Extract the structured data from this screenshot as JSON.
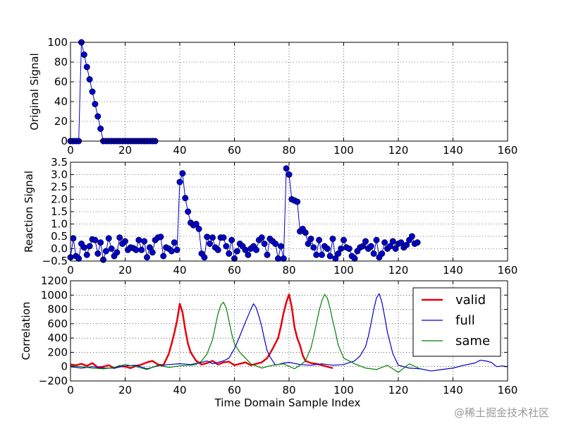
{
  "chart_data": [
    {
      "type": "line",
      "ylabel": "Original Signal",
      "xlabel": "",
      "xlim": [
        0,
        160
      ],
      "ylim": [
        0,
        100
      ],
      "xticks": [
        "0",
        "20",
        "40",
        "60",
        "80",
        "100",
        "120",
        "140",
        "160"
      ],
      "yticks": [
        "0",
        "20",
        "40",
        "60",
        "80",
        "100"
      ],
      "grid": true,
      "series": [
        {
          "color": "#0000cc",
          "marker": "circle",
          "x": [
            0,
            1,
            2,
            3,
            4,
            5,
            6,
            7,
            8,
            9,
            10,
            11,
            12,
            13,
            14,
            15,
            16,
            17,
            18,
            19,
            20,
            21,
            22,
            23,
            24,
            25,
            26,
            27,
            28,
            29,
            30,
            31
          ],
          "y": [
            0,
            0,
            0,
            0,
            100,
            87.5,
            75,
            62.5,
            50,
            37.5,
            25,
            12.5,
            0,
            0,
            0,
            0,
            0,
            0,
            0,
            0,
            0,
            0,
            0,
            0,
            0,
            0,
            0,
            0,
            0,
            0,
            0,
            0
          ]
        }
      ]
    },
    {
      "type": "line",
      "ylabel": "Reaction Signal",
      "xlabel": "",
      "xlim": [
        0,
        160
      ],
      "ylim": [
        -0.5,
        3.5
      ],
      "xticks": [
        "0",
        "20",
        "40",
        "60",
        "80",
        "100",
        "120",
        "140",
        "160"
      ],
      "yticks": [
        "−0.5",
        "0.0",
        "0.5",
        "1.0",
        "1.5",
        "2.0",
        "2.5",
        "3.0",
        "3.5"
      ],
      "grid": true,
      "series": [
        {
          "color": "#0000cc",
          "marker": "circle",
          "x": [
            0,
            1,
            2,
            3,
            4,
            5,
            6,
            7,
            8,
            9,
            10,
            11,
            12,
            13,
            14,
            15,
            16,
            17,
            18,
            19,
            20,
            21,
            22,
            23,
            24,
            25,
            26,
            27,
            28,
            29,
            30,
            31,
            32,
            33,
            34,
            35,
            36,
            37,
            38,
            39,
            40,
            41,
            42,
            43,
            44,
            45,
            46,
            47,
            48,
            49,
            50,
            51,
            52,
            53,
            54,
            55,
            56,
            57,
            58,
            59,
            60,
            61,
            62,
            63,
            64,
            65,
            66,
            67,
            68,
            69,
            70,
            71,
            72,
            73,
            74,
            75,
            76,
            77,
            78,
            79,
            80,
            81,
            82,
            83,
            84,
            85,
            86,
            87,
            88,
            89,
            90,
            91,
            92,
            93,
            94,
            95,
            96,
            97,
            98,
            99,
            100,
            101,
            102,
            103,
            104,
            105,
            106,
            107,
            108,
            109,
            110,
            111,
            112,
            113,
            114,
            115,
            116,
            117,
            118,
            119,
            120,
            121,
            122,
            123,
            124,
            125,
            126,
            127
          ],
          "y": [
            -0.35,
            0.42,
            -0.3,
            -0.4,
            0.2,
            0.05,
            -0.25,
            0.1,
            0.38,
            0.35,
            -0.2,
            0.25,
            -0.45,
            -0.1,
            0.42,
            0.0,
            -0.3,
            -0.15,
            0.45,
            0.2,
            0.3,
            -0.05,
            0.05,
            0.02,
            -0.05,
            0.35,
            -0.05,
            0.3,
            -0.35,
            0.05,
            -0.15,
            0.35,
            0.45,
            0.48,
            -0.3,
            0.05,
            0.0,
            -0.1,
            0.25,
            -0.05,
            2.7,
            3.05,
            2.05,
            1.5,
            1.05,
            0.95,
            1.0,
            0.8,
            -0.2,
            -0.35,
            0.48,
            0.2,
            0.45,
            0.05,
            -0.05,
            0.45,
            0.45,
            0.1,
            -0.2,
            0.35,
            -0.4,
            -0.1,
            0.2,
            0.1,
            -0.05,
            -0.25,
            0.0,
            0.1,
            -0.05,
            0.35,
            0.45,
            0.2,
            -0.25,
            0.4,
            0.3,
            0.2,
            -0.4,
            0.1,
            -0.4,
            3.25,
            3.0,
            2.0,
            1.95,
            1.9,
            0.7,
            0.8,
            0.65,
            0.2,
            0.4,
            0.05,
            -0.25,
            0.35,
            -0.25,
            0.1,
            0.0,
            -0.3,
            0.4,
            -0.4,
            -0.2,
            0.0,
            0.35,
            0.05,
            0.0,
            -0.3,
            -0.4,
            -0.1,
            0.05,
            0.1,
            0.3,
            0.0,
            0.1,
            -0.2,
            0.35,
            -0.35,
            -0.2,
            0.25,
            0.0,
            0.1,
            0.3,
            0.0,
            0.2,
            0.25,
            0.05,
            0.15,
            0.35,
            0.5,
            0.2,
            0.25
          ]
        }
      ]
    },
    {
      "type": "line",
      "ylabel": "Correlation",
      "xlabel": "Time Domain Sample Index",
      "xlim": [
        0,
        160
      ],
      "ylim": [
        -200,
        1200
      ],
      "xticks": [
        "0",
        "20",
        "40",
        "60",
        "80",
        "100",
        "120",
        "140",
        "160"
      ],
      "yticks": [
        "−200",
        "0",
        "200",
        "400",
        "600",
        "800",
        "1000",
        "1200"
      ],
      "grid": true,
      "legend": "top-right",
      "series": [
        {
          "name": "valid",
          "color": "#e8000b",
          "width": 2.5,
          "x": [
            0,
            2,
            4,
            6,
            8,
            10,
            12,
            14,
            16,
            18,
            20,
            22,
            24,
            26,
            28,
            30,
            32,
            34,
            36,
            37,
            38,
            39,
            40,
            41,
            42,
            43,
            44,
            46,
            48,
            50,
            52,
            54,
            56,
            58,
            60,
            62,
            64,
            66,
            68,
            70,
            72,
            74,
            76,
            77,
            78,
            79,
            80,
            81,
            82,
            83,
            84,
            85,
            86,
            88,
            90,
            92,
            94,
            96
          ],
          "y": [
            30,
            20,
            40,
            10,
            50,
            -10,
            0,
            20,
            -20,
            10,
            0,
            -20,
            10,
            30,
            60,
            80,
            30,
            20,
            180,
            320,
            470,
            640,
            880,
            760,
            520,
            320,
            200,
            80,
            30,
            50,
            80,
            30,
            60,
            70,
            20,
            40,
            60,
            20,
            40,
            60,
            120,
            250,
            400,
            560,
            750,
            900,
            1010,
            830,
            550,
            400,
            300,
            160,
            80,
            50,
            40,
            20,
            0,
            -20
          ]
        },
        {
          "name": "full",
          "color": "#0000cc",
          "width": 1.2,
          "x": [
            0,
            4,
            8,
            12,
            16,
            20,
            24,
            28,
            32,
            36,
            40,
            44,
            48,
            50,
            52,
            54,
            56,
            58,
            60,
            62,
            64,
            66,
            67,
            68,
            69,
            70,
            71,
            72,
            73,
            74,
            75,
            76,
            78,
            80,
            84,
            88,
            92,
            96,
            100,
            104,
            106,
            108,
            109,
            110,
            111,
            112,
            113,
            114,
            115,
            116,
            118,
            120,
            124,
            128,
            132,
            136,
            140,
            144,
            148,
            150,
            152,
            154,
            156,
            158,
            160
          ],
          "y": [
            0,
            -20,
            0,
            -20,
            -20,
            10,
            20,
            -30,
            10,
            30,
            40,
            30,
            60,
            80,
            40,
            60,
            80,
            120,
            250,
            430,
            620,
            800,
            880,
            820,
            700,
            560,
            380,
            220,
            140,
            80,
            20,
            30,
            50,
            60,
            30,
            20,
            40,
            20,
            30,
            80,
            150,
            280,
            420,
            600,
            800,
            960,
            1020,
            900,
            700,
            480,
            180,
            20,
            -20,
            -30,
            -60,
            -40,
            -20,
            20,
            50,
            90,
            80,
            60,
            0,
            10,
            0
          ]
        },
        {
          "name": "same",
          "color": "#008000",
          "width": 1.2,
          "x": [
            0,
            4,
            8,
            12,
            16,
            20,
            24,
            28,
            32,
            36,
            40,
            44,
            46,
            48,
            50,
            52,
            53,
            54,
            55,
            56,
            57,
            58,
            59,
            60,
            62,
            64,
            66,
            70,
            74,
            78,
            82,
            84,
            86,
            88,
            89,
            90,
            91,
            92,
            93,
            94,
            95,
            96,
            97,
            98,
            100,
            104,
            108,
            112,
            116,
            120,
            124,
            128
          ],
          "y": [
            10,
            0,
            -20,
            -30,
            -10,
            30,
            0,
            -40,
            20,
            -10,
            10,
            20,
            30,
            80,
            180,
            380,
            560,
            740,
            860,
            900,
            820,
            640,
            460,
            320,
            200,
            120,
            40,
            -20,
            20,
            40,
            -30,
            20,
            80,
            260,
            420,
            600,
            780,
            920,
            1010,
            960,
            820,
            640,
            480,
            300,
            120,
            40,
            -20,
            -40,
            20,
            -80,
            40,
            -30
          ]
        }
      ]
    }
  ],
  "watermark": "@稀土掘金技术社区"
}
